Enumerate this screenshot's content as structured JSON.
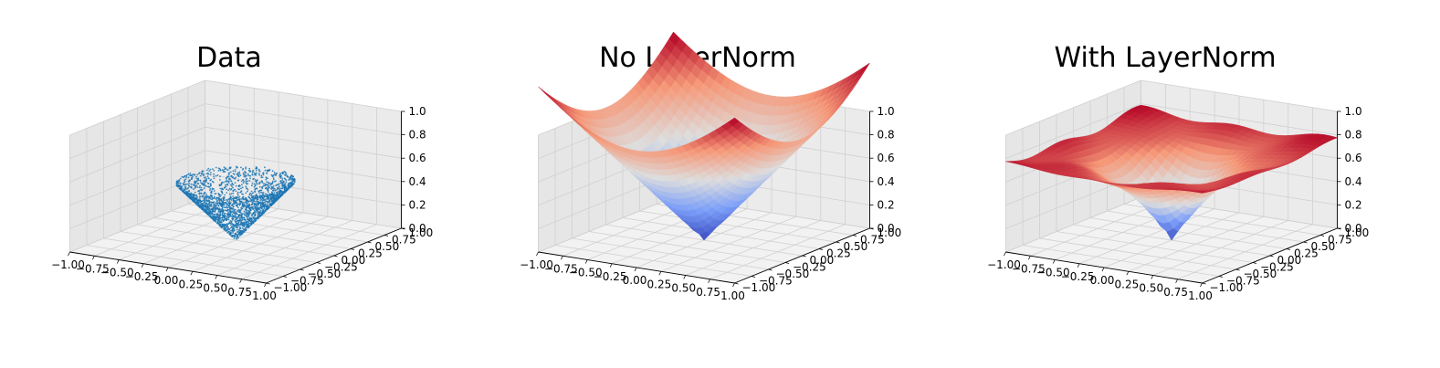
{
  "chart_data": [
    {
      "type": "scatter",
      "title": "Data",
      "xlim": [
        -1,
        1
      ],
      "ylim": [
        -1,
        1
      ],
      "zlim": [
        0,
        1
      ],
      "x_ticks": [
        "−1.00",
        "−0.75",
        "−0.50",
        "−0.25",
        "0.00",
        "0.25",
        "0.50",
        "0.75",
        "1.00"
      ],
      "y_ticks": [
        "−1.00",
        "−0.75",
        "−0.50",
        "−0.25",
        "0.00",
        "0.25",
        "0.50",
        "0.75",
        "1.00"
      ],
      "z_ticks": [
        "0.0",
        "0.2",
        "0.4",
        "0.6",
        "0.8",
        "1.0"
      ],
      "surface": "z = sqrt(x^2 + y^2) for sqrt(x^2 + y^2) <= 0.5",
      "marker_color": "#1f77b4",
      "grid": true
    },
    {
      "type": "surface",
      "title": "No LayerNorm",
      "xlim": [
        -1,
        1
      ],
      "ylim": [
        -1,
        1
      ],
      "zlim": [
        0,
        1
      ],
      "x_ticks": [
        "−1.00",
        "−0.75",
        "−0.50",
        "−0.25",
        "0.00",
        "0.25",
        "0.50",
        "0.75",
        "1.00"
      ],
      "y_ticks": [
        "−1.00",
        "−0.75",
        "−0.50",
        "−0.25",
        "0.00",
        "0.25",
        "0.50",
        "0.75",
        "1.00"
      ],
      "z_ticks": [
        "0.0",
        "0.2",
        "0.4",
        "0.6",
        "0.8",
        "1.0"
      ],
      "surface": "cone z = sqrt(x^2 + y^2); reaches ~1.4 at the corners",
      "colormap": "coolwarm",
      "grid": true
    },
    {
      "type": "surface",
      "title": "With LayerNorm",
      "xlim": [
        -1,
        1
      ],
      "ylim": [
        -1,
        1
      ],
      "zlim": [
        0,
        1
      ],
      "x_ticks": [
        "−1.00",
        "−0.75",
        "−0.50",
        "−0.25",
        "0.00",
        "0.25",
        "0.50",
        "0.75",
        "1.00"
      ],
      "y_ticks": [
        "−1.00",
        "−0.75",
        "−0.50",
        "−0.25",
        "0.00",
        "0.25",
        "0.50",
        "0.75",
        "1.00"
      ],
      "z_ticks": [
        "0.0",
        "0.2",
        "0.4",
        "0.6",
        "0.8",
        "1.0"
      ],
      "surface": "cone z = sqrt(x^2 + y^2) saturating near 0.75 with slight ripples",
      "colormap": "coolwarm",
      "grid": true
    }
  ]
}
